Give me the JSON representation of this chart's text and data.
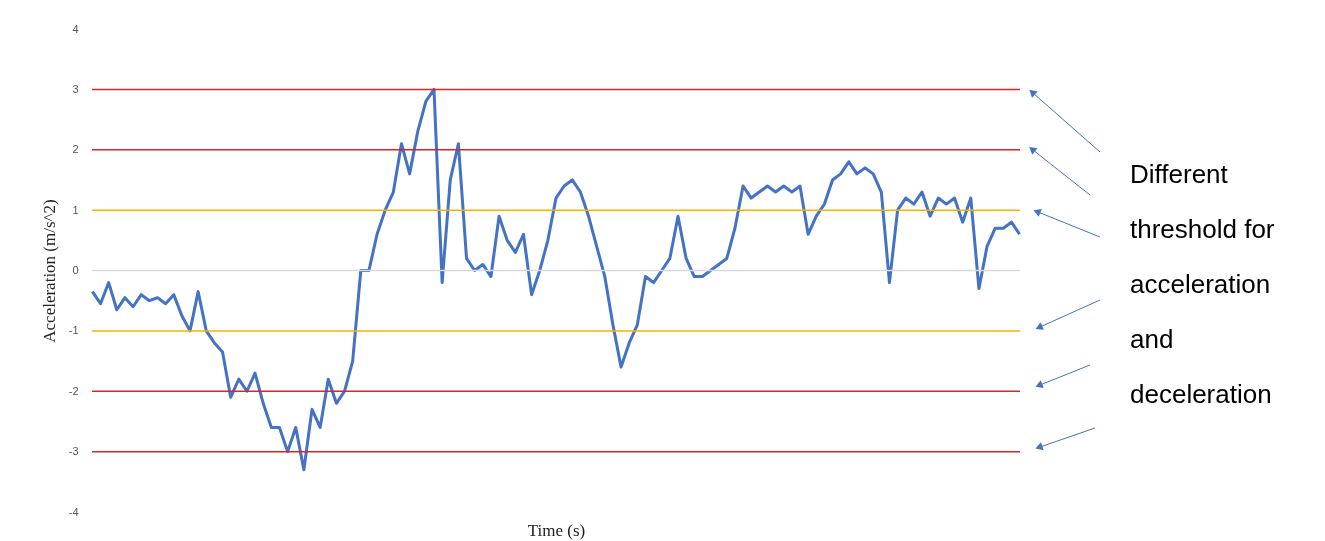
{
  "chart_data": {
    "type": "line",
    "categories": [
      null,
      null,
      null,
      null,
      null,
      null,
      null,
      null,
      null,
      null,
      null,
      null,
      null,
      null,
      null,
      null,
      null,
      null,
      null,
      null,
      null,
      null,
      null,
      null,
      null,
      null,
      null,
      null,
      null,
      null,
      null,
      null,
      null,
      null,
      null,
      null,
      null,
      null,
      null,
      null,
      null,
      null,
      null,
      null,
      null,
      null,
      null,
      null,
      null,
      null,
      null,
      null,
      null,
      null,
      null,
      null,
      null,
      null,
      null,
      null,
      null,
      null,
      null,
      null,
      null,
      null,
      null,
      null,
      null,
      null,
      null,
      null,
      null,
      null,
      null,
      null,
      null,
      null,
      null,
      null,
      null,
      null,
      null,
      null,
      null,
      null,
      null,
      null,
      null,
      null,
      null,
      null,
      null,
      null,
      null,
      null,
      null,
      null,
      null,
      null,
      null,
      null,
      null,
      null,
      null,
      null,
      null,
      null,
      null,
      null,
      null,
      null,
      null,
      null,
      null
    ],
    "series": [
      {
        "color": "#4472c4",
        "values": [
          -0.35,
          -0.55,
          -0.2,
          -0.65,
          -0.45,
          -0.6,
          -0.4,
          -0.5,
          -0.45,
          -0.55,
          -0.4,
          -0.75,
          -1.0,
          -0.35,
          -1.0,
          -1.2,
          -1.35,
          -2.1,
          -1.8,
          -2.0,
          -1.7,
          -2.2,
          -2.6,
          -2.6,
          -3.0,
          -2.6,
          -3.3,
          -2.3,
          -2.6,
          -1.8,
          -2.2,
          -2.0,
          -1.5,
          0.0,
          0.0,
          0.6,
          1.0,
          1.3,
          2.1,
          1.6,
          2.3,
          2.8,
          3.0,
          -0.2,
          1.5,
          2.1,
          0.2,
          0.0,
          0.1,
          -0.1,
          0.9,
          0.5,
          0.3,
          0.6,
          -0.4,
          0.0,
          0.5,
          1.2,
          1.4,
          1.5,
          1.3,
          0.9,
          0.4,
          -0.1,
          -0.9,
          -1.6,
          -1.2,
          -0.9,
          -0.1,
          -0.2,
          0.0,
          0.2,
          0.9,
          0.2,
          -0.1,
          -0.1,
          0.0,
          0.1,
          0.2,
          0.7,
          1.4,
          1.2,
          1.3,
          1.4,
          1.3,
          1.4,
          1.3,
          1.4,
          0.6,
          0.9,
          1.1,
          1.5,
          1.6,
          1.8,
          1.6,
          1.7,
          1.6,
          1.3,
          -0.2,
          1.0,
          1.2,
          1.1,
          1.3,
          0.9,
          1.2,
          1.1,
          1.2,
          0.8,
          1.2,
          -0.3,
          0.4,
          0.7,
          0.7,
          0.8,
          0.6
        ]
      }
    ],
    "xlabel": "Time (s)",
    "ylabel": "Acceleration (m/s^2)",
    "ylim": [
      -4,
      4
    ],
    "yticks": [
      -4,
      -3,
      -2,
      -1,
      0,
      1,
      2,
      3,
      4
    ],
    "marker": "none",
    "line_style": "solid",
    "ref_lines": [
      {
        "axis": "y",
        "value": 3,
        "color": "#d62728"
      },
      {
        "axis": "y",
        "value": 2,
        "color": "#d62728"
      },
      {
        "axis": "y",
        "value": 1,
        "color": "#f5b400"
      },
      {
        "axis": "y",
        "value": 0,
        "color": "#d9d9d9"
      },
      {
        "axis": "y",
        "value": -1,
        "color": "#f5b400"
      },
      {
        "axis": "y",
        "value": -2,
        "color": "#d62728"
      },
      {
        "axis": "y",
        "value": -3,
        "color": "#d62728"
      }
    ],
    "annotations": [
      "Different threshold for acceleration and deceleration"
    ]
  }
}
